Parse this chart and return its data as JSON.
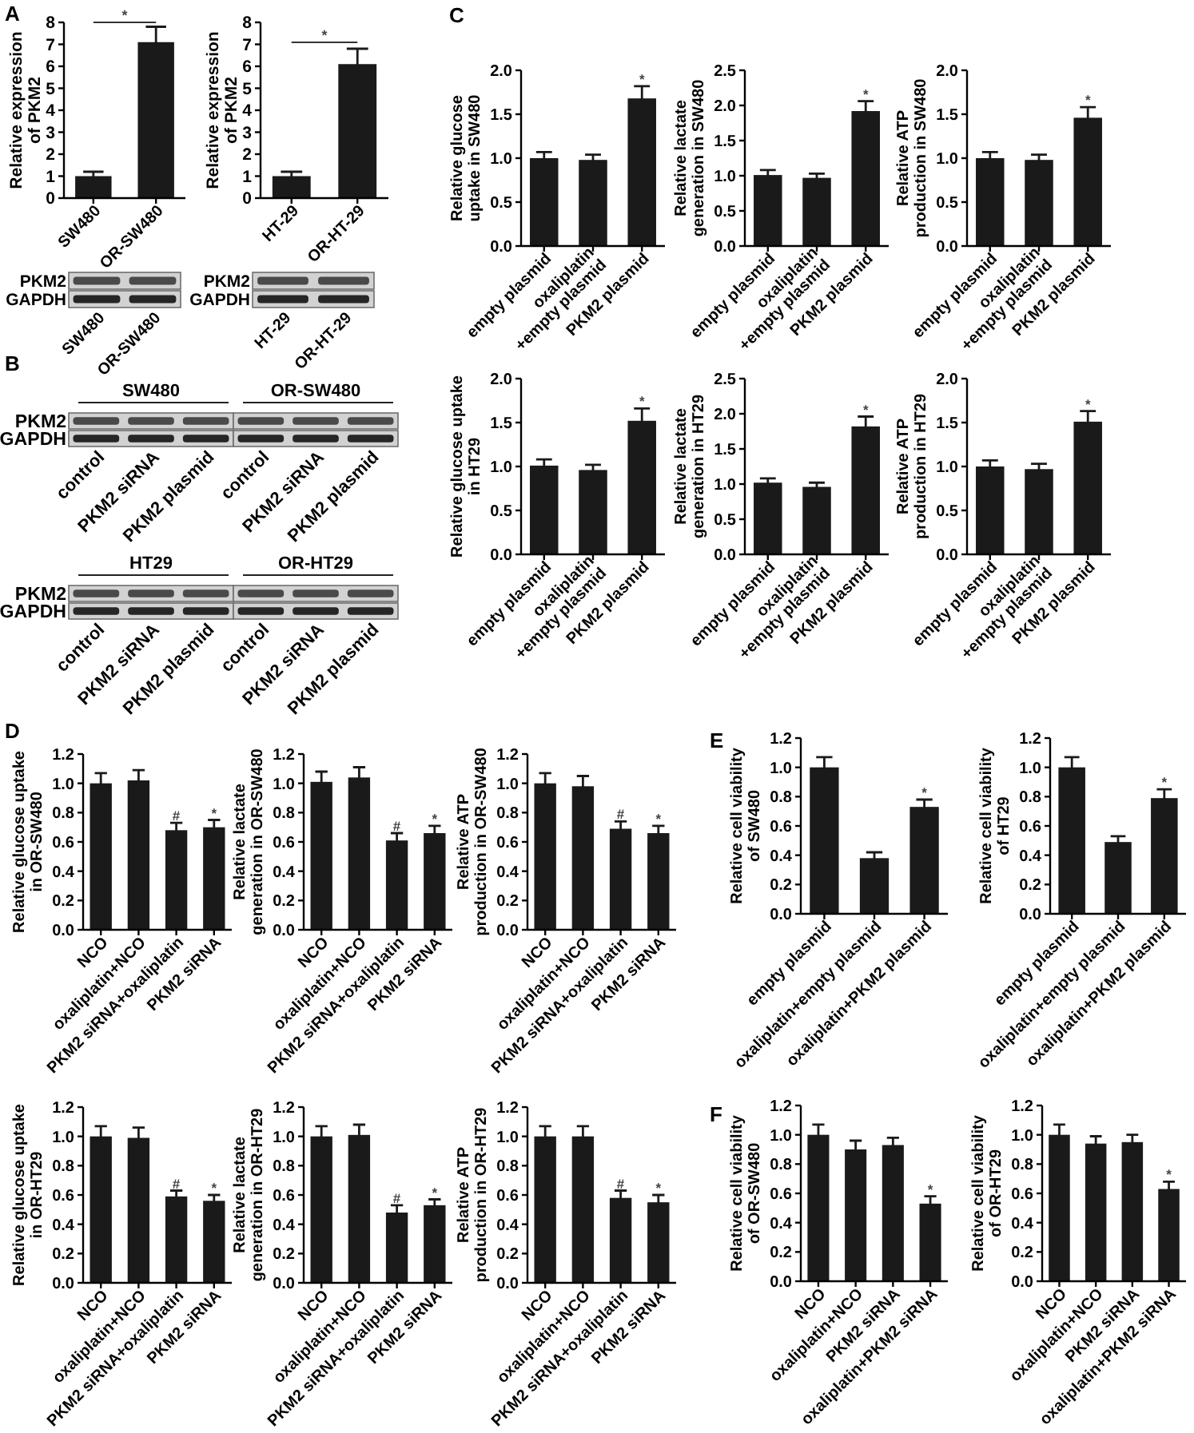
{
  "chart_data": [
    {
      "type": "bar",
      "title": "A",
      "categories": [
        "SW480",
        "OR-SW480"
      ],
      "values": [
        1.0,
        7.1
      ],
      "errors": [
        0.2,
        0.7
      ],
      "color": "#1a1a1a",
      "ylim": [
        0,
        8
      ],
      "yticks": [
        0,
        1,
        2,
        3,
        4,
        5,
        6,
        7,
        8
      ],
      "ylabel": "Relative expression\nof PKM2",
      "annotations": [
        "*"
      ]
    },
    {
      "type": "bar",
      "categories": [
        "HT-29",
        "OR-HT-29"
      ],
      "values": [
        1.0,
        6.1
      ],
      "errors": [
        0.2,
        0.7
      ],
      "color": "#1a1a1a",
      "ylim": [
        0,
        8
      ],
      "yticks": [
        0,
        1,
        2,
        3,
        4,
        5,
        6,
        7,
        8
      ],
      "ylabel": "Relative expression\nof PKM2",
      "annotations": [
        "*"
      ]
    },
    {
      "type": "other",
      "categories": [
        "SW480",
        "OR-SW480"
      ],
      "y_categories": [
        "PKM2",
        "GAPDH"
      ]
    },
    {
      "type": "other",
      "categories": [
        "HT-29",
        "OR-HT-29"
      ],
      "y_categories": [
        "PKM2",
        "GAPDH"
      ]
    },
    {
      "type": "other",
      "title": "B",
      "subtitle": "SW480",
      "categories": [
        "control",
        "PKM2 siRNA",
        "PKM2 plasmid"
      ],
      "y_categories": [
        "PKM2",
        "GAPDH"
      ]
    },
    {
      "type": "other",
      "subtitle": "OR-SW480",
      "categories": [
        "control",
        "PKM2 siRNA",
        "PKM2 plasmid"
      ]
    },
    {
      "type": "other",
      "subtitle": "HT29",
      "categories": [
        "control",
        "PKM2 siRNA",
        "PKM2 plasmid"
      ],
      "y_categories": [
        "PKM2",
        "GAPDH"
      ]
    },
    {
      "type": "other",
      "subtitle": "OR-HT29",
      "categories": [
        "control",
        "PKM2 siRNA",
        "PKM2 plasmid"
      ]
    },
    {
      "type": "bar",
      "title": "C",
      "categories": [
        "empty plasmid",
        "oxaliplatin\n+empty plasmid",
        "PKM2 plasmid"
      ],
      "values": [
        1.0,
        0.98,
        1.68
      ],
      "errors": [
        0.07,
        0.06,
        0.14
      ],
      "color": "#1a1a1a",
      "ylim": [
        0,
        2
      ],
      "yticks": [
        {
          "value": 0,
          "label": "0.0"
        },
        0.5,
        {
          "value": 1,
          "label": "1.0"
        },
        1.5,
        {
          "value": 2,
          "label": "2.0"
        }
      ],
      "ylabel": "Relative glucose\nuptake in SW480",
      "annotations": [
        {
          "text": "*",
          "x": "PKM2 plasmid",
          "y": 1.82
        }
      ]
    },
    {
      "type": "bar",
      "categories": [
        "empty plasmid",
        "oxaliplatin\n+empty plasmid",
        "PKM2 plasmid"
      ],
      "values": [
        1.01,
        0.97,
        1.92
      ],
      "errors": [
        0.07,
        0.06,
        0.14
      ],
      "color": "#1a1a1a",
      "ylim": [
        0,
        2.5
      ],
      "yticks": [
        {
          "value": 0,
          "label": "0.0"
        },
        0.5,
        {
          "value": 1,
          "label": "1.0"
        },
        1.5,
        {
          "value": 2,
          "label": "2.0"
        },
        2.5
      ],
      "ylabel": "Relative lactate\ngeneration in SW480",
      "annotations": [
        {
          "text": "*",
          "x": "PKM2 plasmid",
          "y": 2.06
        }
      ]
    },
    {
      "type": "bar",
      "categories": [
        "empty plasmid",
        "oxaliplatin\n+empty plasmid",
        "PKM2 plasmid"
      ],
      "values": [
        1.0,
        0.98,
        1.46
      ],
      "errors": [
        0.07,
        0.06,
        0.12
      ],
      "color": "#1a1a1a",
      "ylim": [
        0,
        2
      ],
      "yticks": [
        {
          "value": 0,
          "label": "0.0"
        },
        0.5,
        {
          "value": 1,
          "label": "1.0"
        },
        1.5,
        {
          "value": 2,
          "label": "2.0"
        }
      ],
      "ylabel": "Relative ATP\nproduction in SW480",
      "annotations": [
        {
          "text": "*",
          "x": "PKM2 plasmid",
          "y": 1.58
        }
      ]
    },
    {
      "type": "bar",
      "categories": [
        "empty plasmid",
        "oxaliplatin\n+empty plasmid",
        "PKM2 plasmid"
      ],
      "values": [
        1.01,
        0.96,
        1.52
      ],
      "errors": [
        0.07,
        0.06,
        0.14
      ],
      "color": "#1a1a1a",
      "ylim": [
        0,
        2
      ],
      "yticks": [
        {
          "value": 0,
          "label": "0.0"
        },
        0.5,
        {
          "value": 1,
          "label": "1.0"
        },
        1.5,
        {
          "value": 2,
          "label": "2.0"
        }
      ],
      "ylabel": "Relative glucose uptake\nin HT29",
      "annotations": [
        {
          "text": "*",
          "x": "PKM2 plasmid",
          "y": 1.66
        }
      ]
    },
    {
      "type": "bar",
      "categories": [
        "empty plasmid",
        "oxaliplatin\n+empty plasmid",
        "PKM2 plasmid"
      ],
      "values": [
        1.02,
        0.96,
        1.82
      ],
      "errors": [
        0.06,
        0.06,
        0.14
      ],
      "color": "#1a1a1a",
      "ylim": [
        0,
        2.5
      ],
      "yticks": [
        {
          "value": 0,
          "label": "0.0"
        },
        0.5,
        {
          "value": 1,
          "label": "1.0"
        },
        1.5,
        {
          "value": 2,
          "label": "2.0"
        },
        2.5
      ],
      "ylabel": "Relative lactate\ngeneration in HT29",
      "annotations": [
        {
          "text": "*",
          "x": "PKM2 plasmid",
          "y": 1.96
        }
      ]
    },
    {
      "type": "bar",
      "categories": [
        "empty plasmid",
        "oxaliplatin\n+empty plasmid",
        "PKM2 plasmid"
      ],
      "values": [
        1.0,
        0.97,
        1.51
      ],
      "errors": [
        0.07,
        0.06,
        0.12
      ],
      "color": "#1a1a1a",
      "ylim": [
        0,
        2
      ],
      "yticks": [
        {
          "value": 0,
          "label": "0.0"
        },
        0.5,
        {
          "value": 1,
          "label": "1.0"
        },
        1.5,
        {
          "value": 2,
          "label": "2.0"
        }
      ],
      "ylabel": "Relative ATP\nproduction in HT29",
      "annotations": [
        {
          "text": "*",
          "x": "PKM2 plasmid",
          "y": 1.63
        }
      ]
    },
    {
      "type": "bar",
      "title": "D",
      "categories": [
        "NCO",
        "oxaliplatin+NCO",
        "PKM2 siRNA+oxaliplatin",
        "PKM2 siRNA"
      ],
      "values": [
        1.0,
        1.02,
        0.68,
        0.7
      ],
      "errors": [
        0.07,
        0.07,
        0.05,
        0.05
      ],
      "color": "#1a1a1a",
      "ylim": [
        0,
        1.2
      ],
      "yticks": [
        {
          "value": 0,
          "label": "0.0"
        },
        0.2,
        0.4,
        0.6,
        0.8,
        {
          "value": 1,
          "label": "1.0"
        },
        1.2
      ],
      "ylabel": "Relative glucose uptake\nin OR-SW480",
      "annotations": [
        {
          "text": "#",
          "x": "PKM2 siRNA+oxaliplatin",
          "y": 0.73
        },
        {
          "text": "*",
          "x": "PKM2 siRNA",
          "y": 0.75
        }
      ]
    },
    {
      "type": "bar",
      "categories": [
        "NCO",
        "oxaliplatin+NCO",
        "PKM2 siRNA+oxaliplatin",
        "PKM2 siRNA"
      ],
      "values": [
        1.01,
        1.04,
        0.61,
        0.66
      ],
      "errors": [
        0.07,
        0.07,
        0.05,
        0.05
      ],
      "color": "#1a1a1a",
      "ylim": [
        0,
        1.2
      ],
      "yticks": [
        {
          "value": 0,
          "label": "0.0"
        },
        0.2,
        0.4,
        0.6,
        0.8,
        {
          "value": 1,
          "label": "1.0"
        },
        1.2
      ],
      "ylabel": "Relative lactate\ngeneration in OR-SW480",
      "annotations": [
        {
          "text": "#",
          "x": "PKM2 siRNA+oxaliplatin",
          "y": 0.66
        },
        {
          "text": "*",
          "x": "PKM2 siRNA",
          "y": 0.71
        }
      ]
    },
    {
      "type": "bar",
      "categories": [
        "NCO",
        "oxaliplatin+NCO",
        "PKM2 siRNA+oxaliplatin",
        "PKM2 siRNA"
      ],
      "values": [
        1.0,
        0.98,
        0.69,
        0.66
      ],
      "errors": [
        0.07,
        0.07,
        0.05,
        0.05
      ],
      "color": "#1a1a1a",
      "ylim": [
        0,
        1.2
      ],
      "yticks": [
        {
          "value": 0,
          "label": "0.0"
        },
        0.2,
        0.4,
        0.6,
        0.8,
        {
          "value": 1,
          "label": "1.0"
        },
        1.2
      ],
      "ylabel": "Relative ATP\nproduction in OR-SW480",
      "annotations": [
        {
          "text": "#",
          "x": "PKM2 siRNA+oxaliplatin",
          "y": 0.74
        },
        {
          "text": "*",
          "x": "PKM2 siRNA",
          "y": 0.71
        }
      ]
    },
    {
      "type": "bar",
      "categories": [
        "NCO",
        "oxaliplatin+NCO",
        "PKM2 siRNA+oxaliplatin",
        "PKM2 siRNA"
      ],
      "values": [
        1.0,
        0.99,
        0.59,
        0.56
      ],
      "errors": [
        0.07,
        0.07,
        0.04,
        0.04
      ],
      "color": "#1a1a1a",
      "ylim": [
        0,
        1.2
      ],
      "yticks": [
        {
          "value": 0,
          "label": "0.0"
        },
        0.2,
        0.4,
        0.6,
        0.8,
        {
          "value": 1,
          "label": "1.0"
        },
        1.2
      ],
      "ylabel": "Relative glucose uptake\nin OR-HT29",
      "annotations": [
        {
          "text": "#",
          "x": "PKM2 siRNA+oxaliplatin",
          "y": 0.63
        },
        {
          "text": "*",
          "x": "PKM2 siRNA",
          "y": 0.6
        }
      ]
    },
    {
      "type": "bar",
      "categories": [
        "NCO",
        "oxaliplatin+NCO",
        "PKM2 siRNA+oxaliplatin",
        "PKM2 siRNA"
      ],
      "values": [
        1.0,
        1.01,
        0.48,
        0.53
      ],
      "errors": [
        0.07,
        0.07,
        0.05,
        0.04
      ],
      "color": "#1a1a1a",
      "ylim": [
        0,
        1.2
      ],
      "yticks": [
        {
          "value": 0,
          "label": "0.0"
        },
        0.2,
        0.4,
        0.6,
        0.8,
        {
          "value": 1,
          "label": "1.0"
        },
        1.2
      ],
      "ylabel": "Relative lactate\ngeneration in OR-HT29",
      "annotations": [
        {
          "text": "#",
          "x": "PKM2 siRNA+oxaliplatin",
          "y": 0.53
        },
        {
          "text": "*",
          "x": "PKM2 siRNA",
          "y": 0.57
        }
      ]
    },
    {
      "type": "bar",
      "categories": [
        "NCO",
        "oxaliplatin+NCO",
        "PKM2 siRNA+oxaliplatin",
        "PKM2 siRNA"
      ],
      "values": [
        1.0,
        1.0,
        0.58,
        0.55
      ],
      "errors": [
        0.07,
        0.07,
        0.05,
        0.05
      ],
      "color": "#1a1a1a",
      "ylim": [
        0,
        1.2
      ],
      "yticks": [
        {
          "value": 0,
          "label": "0.0"
        },
        0.2,
        0.4,
        0.6,
        0.8,
        {
          "value": 1,
          "label": "1.0"
        },
        1.2
      ],
      "ylabel": "Relative ATP\nproduction in OR-HT29",
      "annotations": [
        {
          "text": "#",
          "x": "PKM2 siRNA+oxaliplatin",
          "y": 0.63
        },
        {
          "text": "*",
          "x": "PKM2 siRNA",
          "y": 0.6
        }
      ]
    },
    {
      "type": "bar",
      "title": "E",
      "categories": [
        "empty plasmid",
        "oxaliplatin+empty plasmid",
        "oxaliplatin+PKM2 plasmid"
      ],
      "values": [
        1.0,
        0.38,
        0.73
      ],
      "errors": [
        0.07,
        0.04,
        0.05
      ],
      "color": "#1a1a1a",
      "ylim": [
        0,
        1.2
      ],
      "yticks": [
        {
          "value": 0,
          "label": "0.0"
        },
        0.2,
        0.4,
        0.6,
        0.8,
        {
          "value": 1,
          "label": "1.0"
        },
        1.2
      ],
      "ylabel": "Relative cell viability\nof SW480",
      "annotations": [
        {
          "text": "*",
          "x": "oxaliplatin+PKM2 plasmid",
          "y": 0.78
        }
      ]
    },
    {
      "type": "bar",
      "categories": [
        "empty plasmid",
        "oxaliplatin+empty plasmid",
        "oxaliplatin+PKM2 plasmid"
      ],
      "values": [
        1.0,
        0.49,
        0.79
      ],
      "errors": [
        0.07,
        0.04,
        0.06
      ],
      "color": "#1a1a1a",
      "ylim": [
        0,
        1.2
      ],
      "yticks": [
        {
          "value": 0,
          "label": "0.0"
        },
        0.2,
        0.4,
        0.6,
        0.8,
        {
          "value": 1,
          "label": "1.0"
        },
        1.2
      ],
      "ylabel": "Relative cell viability\nof HT29",
      "annotations": [
        {
          "text": "*",
          "x": "oxaliplatin+PKM2 plasmid",
          "y": 0.85
        }
      ]
    },
    {
      "type": "bar",
      "title": "F",
      "categories": [
        "NCO",
        "oxaliplatin+NCO",
        "PKM2 siRNA",
        "oxaliplatin+PKM2 siRNA"
      ],
      "values": [
        1.0,
        0.9,
        0.93,
        0.53
      ],
      "errors": [
        0.07,
        0.06,
        0.05,
        0.05
      ],
      "color": "#1a1a1a",
      "ylim": [
        0,
        1.2
      ],
      "yticks": [
        {
          "value": 0,
          "label": "0.0"
        },
        0.2,
        0.4,
        0.6,
        0.8,
        {
          "value": 1,
          "label": "1.0"
        },
        1.2
      ],
      "ylabel": "Relative cell viability\nof OR-SW480",
      "annotations": [
        {
          "text": "*",
          "x": "oxaliplatin+PKM2 siRNA",
          "y": 0.58
        }
      ]
    },
    {
      "type": "bar",
      "categories": [
        "NCO",
        "oxaliplatin+NCO",
        "PKM2 siRNA",
        "oxaliplatin+PKM2 siRNA"
      ],
      "values": [
        1.0,
        0.94,
        0.95,
        0.63
      ],
      "errors": [
        0.07,
        0.05,
        0.05,
        0.05
      ],
      "color": "#1a1a1a",
      "ylim": [
        0,
        1.2
      ],
      "yticks": [
        {
          "value": 0,
          "label": "0.0"
        },
        0.2,
        0.4,
        0.6,
        0.8,
        {
          "value": 1,
          "label": "1.0"
        },
        1.2
      ],
      "ylabel": "Relative cell viability\nof OR-HT29",
      "annotations": [
        {
          "text": "*",
          "x": "oxaliplatin+PKM2 siRNA",
          "y": 0.68
        }
      ]
    }
  ]
}
